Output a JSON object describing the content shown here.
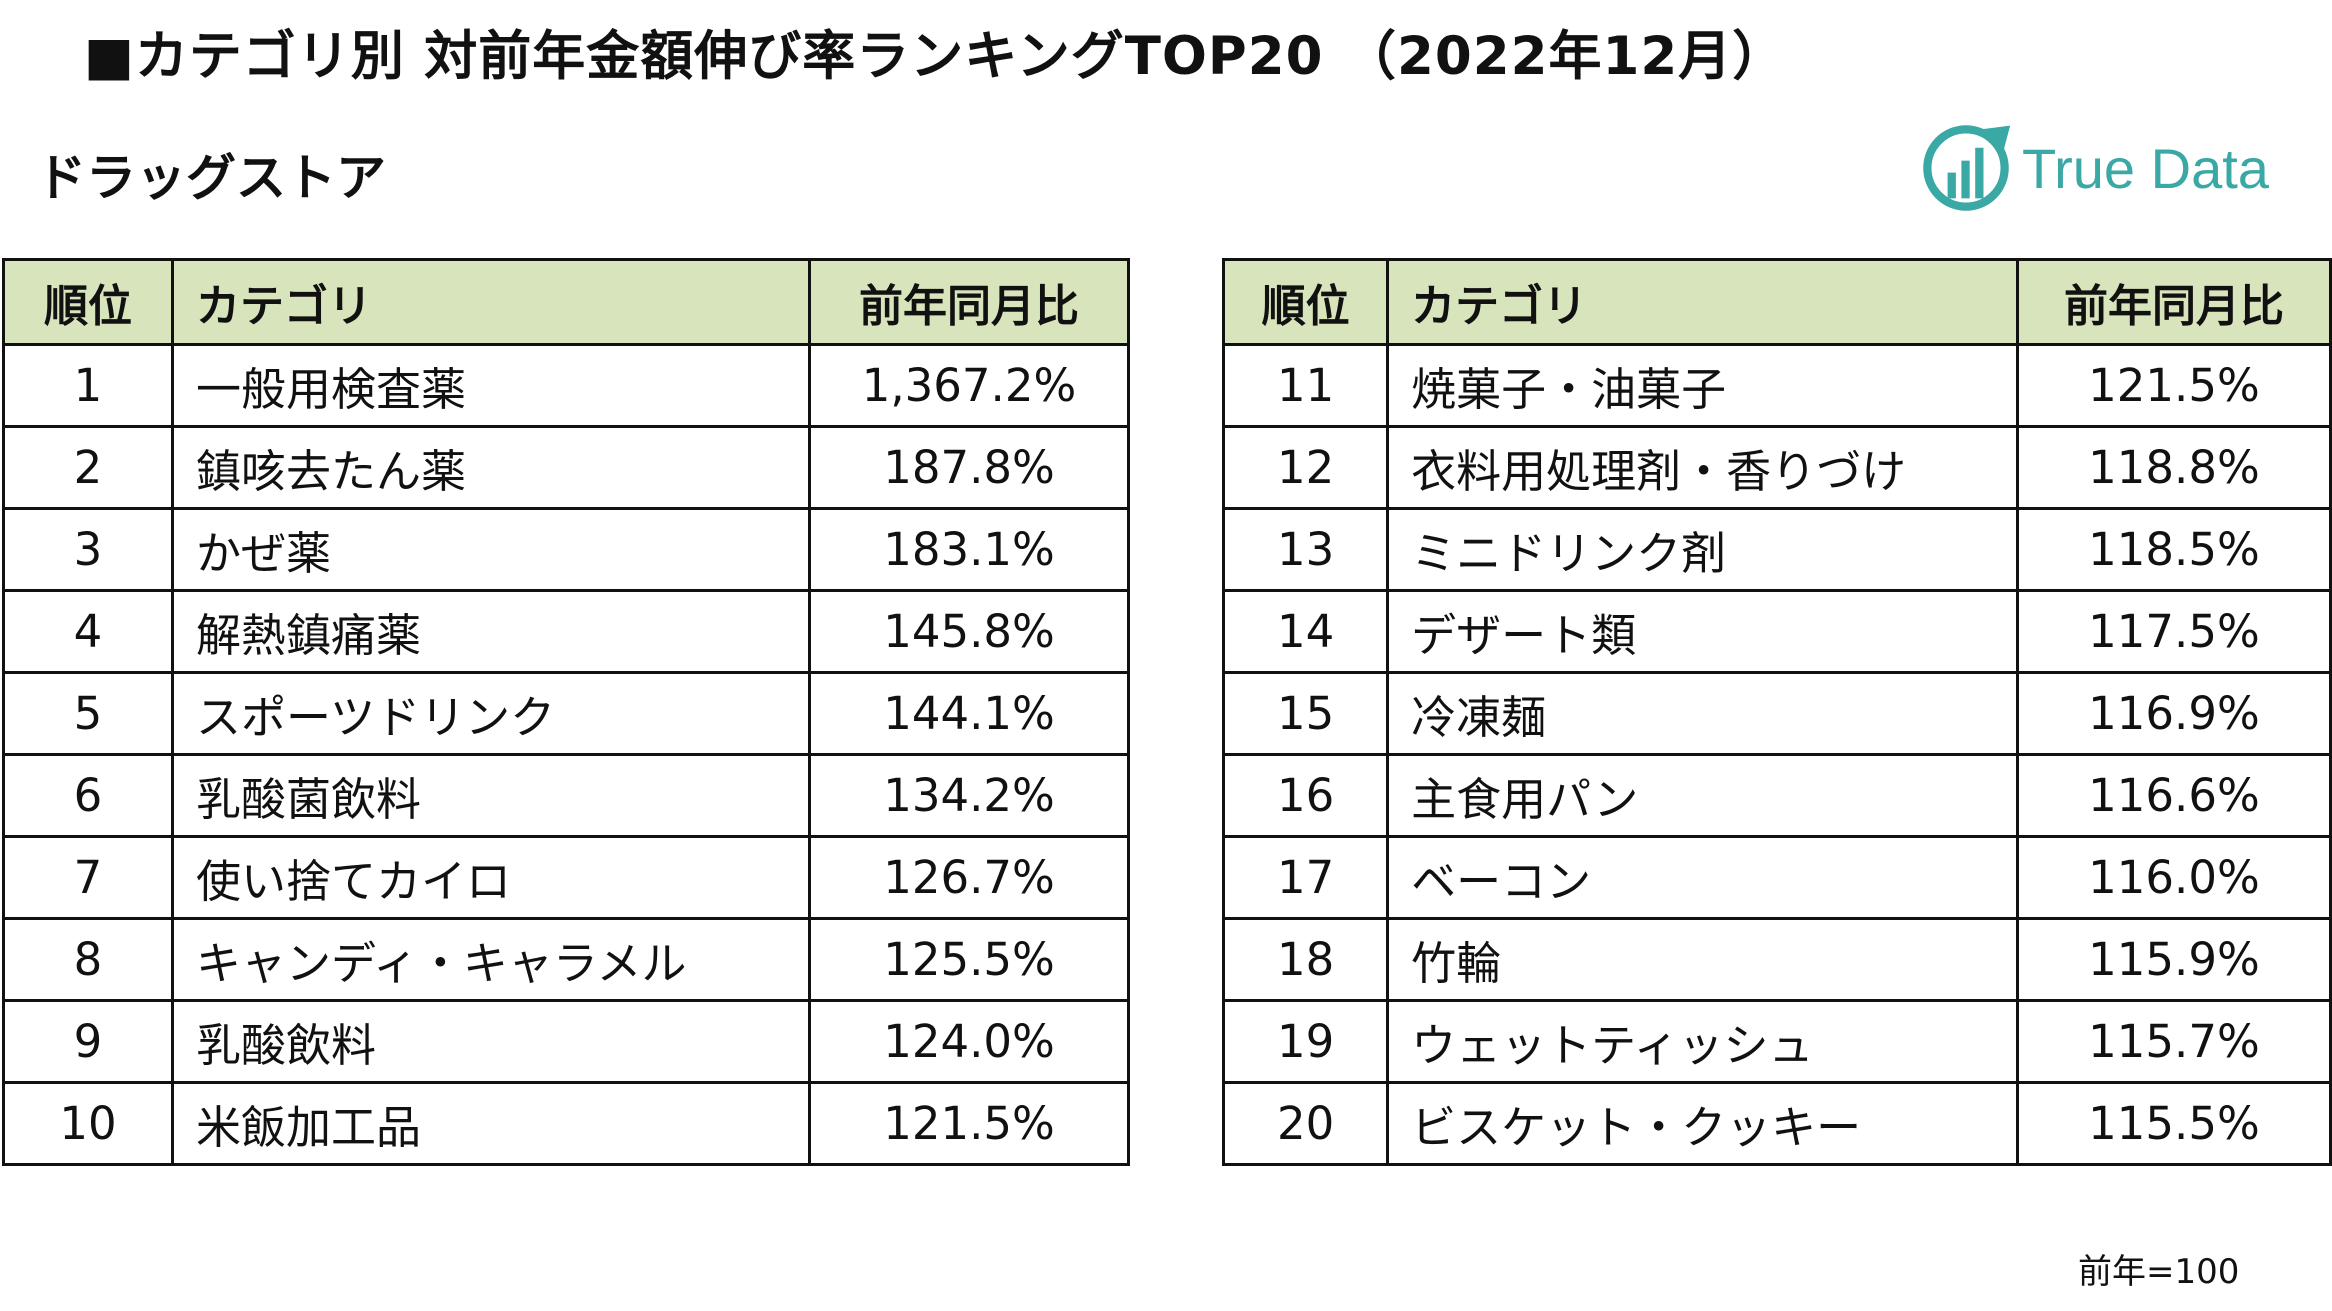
{
  "title": "■カテゴリ別 対前年金額伸び率ランキングTOP20 （2022年12月）",
  "subtitle": "ドラッグストア",
  "logo": {
    "text": "True Data",
    "color": "#3aa8a5"
  },
  "table": {
    "header_color": "#d8e4bc",
    "headers": {
      "rank": "順位",
      "category": "カテゴリ",
      "ratio": "前年同月比"
    },
    "left_rows": [
      {
        "rank": "1",
        "category": "一般用検査薬",
        "ratio": "1,367.2%"
      },
      {
        "rank": "2",
        "category": "鎮咳去たん薬",
        "ratio": "187.8%"
      },
      {
        "rank": "3",
        "category": "かぜ薬",
        "ratio": "183.1%"
      },
      {
        "rank": "4",
        "category": "解熱鎮痛薬",
        "ratio": "145.8%"
      },
      {
        "rank": "5",
        "category": "スポーツドリンク",
        "ratio": "144.1%"
      },
      {
        "rank": "6",
        "category": "乳酸菌飲料",
        "ratio": "134.2%"
      },
      {
        "rank": "7",
        "category": "使い捨てカイロ",
        "ratio": "126.7%"
      },
      {
        "rank": "8",
        "category": "キャンディ・キャラメル",
        "ratio": "125.5%"
      },
      {
        "rank": "9",
        "category": "乳酸飲料",
        "ratio": "124.0%"
      },
      {
        "rank": "10",
        "category": "米飯加工品",
        "ratio": "121.5%"
      }
    ],
    "right_rows": [
      {
        "rank": "11",
        "category": "焼菓子・油菓子",
        "ratio": "121.5%"
      },
      {
        "rank": "12",
        "category": "衣料用処理剤・香りづけ",
        "ratio": "118.8%"
      },
      {
        "rank": "13",
        "category": "ミニドリンク剤",
        "ratio": "118.5%"
      },
      {
        "rank": "14",
        "category": "デザート類",
        "ratio": "117.5%"
      },
      {
        "rank": "15",
        "category": "冷凍麺",
        "ratio": "116.9%"
      },
      {
        "rank": "16",
        "category": "主食用パン",
        "ratio": "116.6%"
      },
      {
        "rank": "17",
        "category": "ベーコン",
        "ratio": "116.0%"
      },
      {
        "rank": "18",
        "category": "竹輪",
        "ratio": "115.9%"
      },
      {
        "rank": "19",
        "category": "ウェットティッシュ",
        "ratio": "115.7%"
      },
      {
        "rank": "20",
        "category": "ビスケット・クッキー",
        "ratio": "115.5%"
      }
    ]
  },
  "note": "前年=100"
}
